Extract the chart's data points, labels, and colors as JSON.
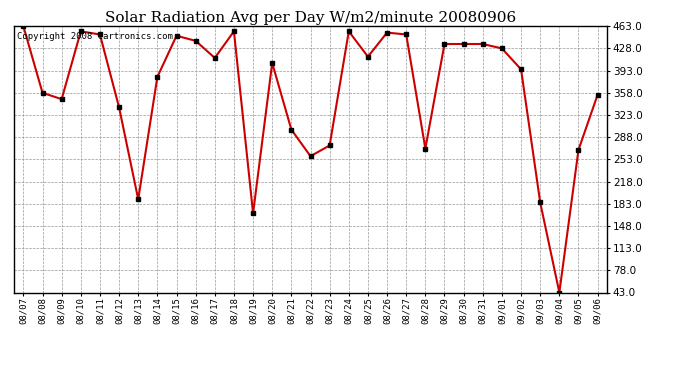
{
  "title": "Solar Radiation Avg per Day W/m2/minute 20080906",
  "copyright": "Copyright 2008 Cartronics.com",
  "dates": [
    "08/07",
    "08/08",
    "08/09",
    "08/10",
    "08/11",
    "08/12",
    "08/13",
    "08/14",
    "08/15",
    "08/16",
    "08/17",
    "08/18",
    "08/19",
    "08/20",
    "08/21",
    "08/22",
    "08/23",
    "08/24",
    "08/25",
    "08/26",
    "08/27",
    "08/28",
    "08/29",
    "08/30",
    "08/31",
    "09/01",
    "09/02",
    "09/03",
    "09/04",
    "09/05",
    "09/06"
  ],
  "values": [
    463,
    358,
    348,
    455,
    450,
    335,
    190,
    383,
    448,
    440,
    413,
    455,
    168,
    405,
    300,
    258,
    275,
    455,
    415,
    453,
    450,
    270,
    435,
    435,
    435,
    428,
    395,
    185,
    43,
    268,
    355
  ],
  "line_color": "#cc0000",
  "marker": "s",
  "marker_size": 2.5,
  "marker_color": "#000000",
  "bg_color": "#ffffff",
  "grid_color": "#999999",
  "ylim": [
    43.0,
    463.0
  ],
  "yticks": [
    43.0,
    78.0,
    113.0,
    148.0,
    183.0,
    218.0,
    253.0,
    288.0,
    323.0,
    358.0,
    393.0,
    428.0,
    463.0
  ],
  "title_fontsize": 11,
  "copyright_fontsize": 6.5,
  "xtick_fontsize": 6.5,
  "ytick_fontsize": 7.5
}
